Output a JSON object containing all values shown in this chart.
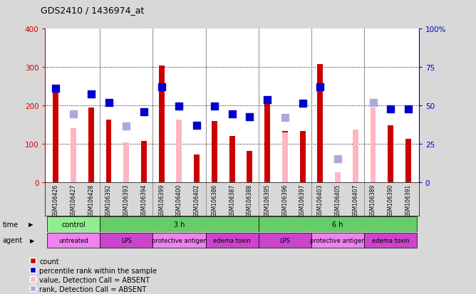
{
  "title": "GDS2410 / 1436974_at",
  "samples": [
    "GSM106426",
    "GSM106427",
    "GSM106428",
    "GSM106392",
    "GSM106393",
    "GSM106394",
    "GSM106399",
    "GSM106400",
    "GSM106402",
    "GSM106386",
    "GSM106387",
    "GSM106388",
    "GSM106395",
    "GSM106396",
    "GSM106397",
    "GSM106403",
    "GSM106405",
    "GSM106407",
    "GSM106389",
    "GSM106390",
    "GSM106391"
  ],
  "count_values": [
    235,
    null,
    195,
    163,
    null,
    108,
    305,
    null,
    72,
    160,
    120,
    82,
    207,
    133,
    133,
    308,
    null,
    null,
    null,
    148,
    112
  ],
  "count_absent": [
    null,
    140,
    null,
    null,
    103,
    null,
    null,
    163,
    null,
    null,
    null,
    null,
    null,
    130,
    null,
    null,
    25,
    137,
    195,
    null,
    null
  ],
  "rank_present": [
    245,
    null,
    230,
    208,
    null,
    183,
    248,
    198,
    148,
    198,
    177,
    170,
    215,
    null,
    205,
    248,
    null,
    null,
    null,
    190,
    190
  ],
  "rank_absent": [
    null,
    177,
    null,
    null,
    147,
    null,
    null,
    null,
    null,
    null,
    null,
    null,
    null,
    168,
    null,
    null,
    60,
    null,
    208,
    null,
    null
  ],
  "ylim_left": [
    0,
    400
  ],
  "ylim_right": [
    0,
    100
  ],
  "yticks_left": [
    0,
    100,
    200,
    300,
    400
  ],
  "yticks_right": [
    0,
    25,
    50,
    75,
    100
  ],
  "ytick_right_labels": [
    "0",
    "25",
    "50",
    "75",
    "100%"
  ],
  "left_color": "#cc0000",
  "right_color": "#0000cc",
  "grid_lines": [
    100,
    200,
    300
  ],
  "bar_color": "#cc0000",
  "bar_absent_color": "#FFB6C1",
  "rank_color": "#0000cc",
  "rank_absent_color": "#aaaadd",
  "bar_width": 0.32,
  "marker_size": 55,
  "bg_color": "#d8d8d8",
  "plot_bg": "#ffffff",
  "separator_positions": [
    2.5,
    5.5,
    8.5,
    11.5,
    14.5,
    17.5
  ],
  "time_segments": [
    {
      "label": "control",
      "start": 0,
      "end": 3,
      "color": "#90EE90"
    },
    {
      "label": "3 h",
      "start": 3,
      "end": 12,
      "color": "#66CC66"
    },
    {
      "label": "6 h",
      "start": 12,
      "end": 21,
      "color": "#66CC66"
    }
  ],
  "agent_segments": [
    {
      "label": "untreated",
      "start": 0,
      "end": 3,
      "color": "#EE82EE"
    },
    {
      "label": "LPS",
      "start": 3,
      "end": 6,
      "color": "#CC44CC"
    },
    {
      "label": "protective antigen",
      "start": 6,
      "end": 9,
      "color": "#EE82EE"
    },
    {
      "label": "edema toxin",
      "start": 9,
      "end": 12,
      "color": "#CC44CC"
    },
    {
      "label": "LPS",
      "start": 12,
      "end": 15,
      "color": "#CC44CC"
    },
    {
      "label": "protective antigen",
      "start": 15,
      "end": 18,
      "color": "#EE82EE"
    },
    {
      "label": "edema toxin",
      "start": 18,
      "end": 21,
      "color": "#CC44CC"
    }
  ],
  "legend_items": [
    {
      "label": "count",
      "color": "#cc0000",
      "kind": "bar"
    },
    {
      "label": "percentile rank within the sample",
      "color": "#0000cc",
      "kind": "square"
    },
    {
      "label": "value, Detection Call = ABSENT",
      "color": "#FFB6C1",
      "kind": "bar"
    },
    {
      "label": "rank, Detection Call = ABSENT",
      "color": "#aaaadd",
      "kind": "square"
    }
  ]
}
